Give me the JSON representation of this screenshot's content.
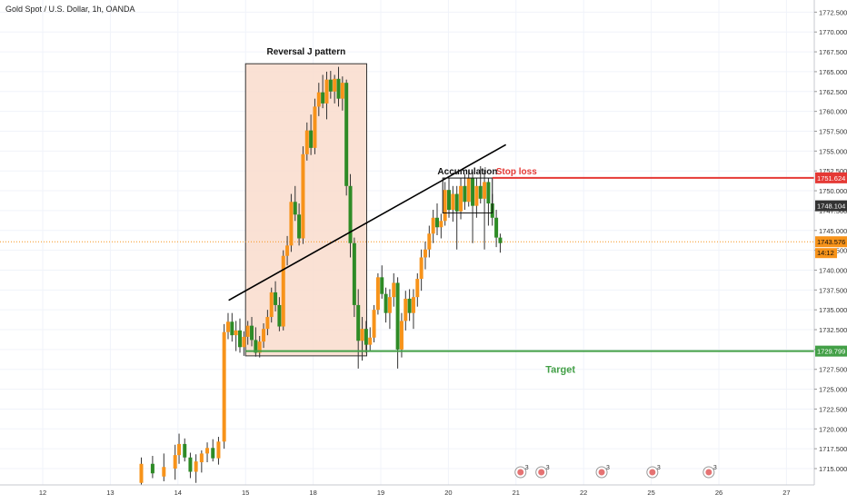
{
  "header": {
    "symbol_title": "Gold Spot / U.S. Dollar, 1h, OANDA"
  },
  "colors": {
    "up": "#f7931a",
    "down": "#2e8b26",
    "wick": "#333333",
    "stop": "#e53935",
    "target": "#43a047",
    "current_price_line": "#f7931a",
    "reversal_box_fill": "#f9dccd",
    "grid": "#f0f3fa"
  },
  "chart_data": {
    "type": "candlestick",
    "title": "Gold Spot / U.S. Dollar, 1h, OANDA",
    "ylim": [
      1713,
      1774
    ],
    "y_ticks": [
      "1715.000",
      "1717.500",
      "1720.000",
      "1722.500",
      "1725.000",
      "1727.500",
      "1730.000",
      "1732.500",
      "1735.000",
      "1737.500",
      "1740.000",
      "1742.500",
      "1745.000",
      "1747.500",
      "1750.000",
      "1752.500",
      "1755.000",
      "1757.500",
      "1760.000",
      "1762.500",
      "1765.000",
      "1767.500",
      "1770.000",
      "1772.500"
    ],
    "y_tick_values": [
      1715,
      1717.5,
      1720,
      1722.5,
      1725,
      1727.5,
      1730,
      1732.5,
      1735,
      1737.5,
      1740,
      1742.5,
      1745,
      1747.5,
      1750,
      1752.5,
      1755,
      1757.5,
      1760,
      1762.5,
      1765,
      1767.5,
      1770,
      1772.5
    ],
    "x_ticks": [
      "12",
      "13",
      "14",
      "15",
      "18",
      "19",
      "20",
      "21",
      "22",
      "25",
      "26",
      "27"
    ],
    "x_tick_positions": [
      0,
      12,
      24,
      36,
      48,
      60,
      72,
      84,
      96,
      108,
      120,
      132
    ],
    "candles": [
      {
        "x": 17.5,
        "o": 1713.2,
        "h": 1716.4,
        "l": 1713.0,
        "c": 1715.6
      },
      {
        "x": 19.5,
        "o": 1715.6,
        "h": 1716.6,
        "l": 1713.8,
        "c": 1714.4
      },
      {
        "x": 21.5,
        "o": 1714.0,
        "h": 1716.9,
        "l": 1713.4,
        "c": 1715.2
      },
      {
        "x": 23.5,
        "o": 1715.0,
        "h": 1718.0,
        "l": 1713.6,
        "c": 1716.7
      },
      {
        "x": 24.2,
        "o": 1716.7,
        "h": 1719.4,
        "l": 1715.6,
        "c": 1718.1
      },
      {
        "x": 25.2,
        "o": 1718.1,
        "h": 1718.8,
        "l": 1715.9,
        "c": 1716.4
      },
      {
        "x": 26.2,
        "o": 1716.4,
        "h": 1717.0,
        "l": 1713.8,
        "c": 1714.6
      },
      {
        "x": 27.2,
        "o": 1714.6,
        "h": 1716.8,
        "l": 1713.2,
        "c": 1715.9
      },
      {
        "x": 28.2,
        "o": 1715.8,
        "h": 1717.3,
        "l": 1714.5,
        "c": 1716.9
      },
      {
        "x": 29.2,
        "o": 1716.9,
        "h": 1718.3,
        "l": 1715.8,
        "c": 1717.6
      },
      {
        "x": 30.2,
        "o": 1717.6,
        "h": 1718.7,
        "l": 1715.9,
        "c": 1716.3
      },
      {
        "x": 31.2,
        "o": 1716.3,
        "h": 1719.0,
        "l": 1715.5,
        "c": 1718.4
      },
      {
        "x": 32.2,
        "o": 1718.4,
        "h": 1733.2,
        "l": 1717.5,
        "c": 1732.2
      },
      {
        "x": 32.9,
        "o": 1732.2,
        "h": 1734.6,
        "l": 1731.3,
        "c": 1733.5
      },
      {
        "x": 33.6,
        "o": 1733.5,
        "h": 1734.6,
        "l": 1731.0,
        "c": 1731.8
      },
      {
        "x": 34.3,
        "o": 1731.8,
        "h": 1733.6,
        "l": 1729.8,
        "c": 1732.4
      },
      {
        "x": 35.0,
        "o": 1732.4,
        "h": 1733.9,
        "l": 1729.6,
        "c": 1730.3
      },
      {
        "x": 35.7,
        "o": 1730.3,
        "h": 1732.3,
        "l": 1729.2,
        "c": 1731.6
      },
      {
        "x": 36.4,
        "o": 1731.6,
        "h": 1733.6,
        "l": 1730.6,
        "c": 1733.0
      },
      {
        "x": 37.1,
        "o": 1733.0,
        "h": 1734.1,
        "l": 1730.4,
        "c": 1731.2
      },
      {
        "x": 37.8,
        "o": 1731.2,
        "h": 1732.8,
        "l": 1729.1,
        "c": 1729.6
      },
      {
        "x": 38.5,
        "o": 1729.6,
        "h": 1731.7,
        "l": 1729.0,
        "c": 1731.0
      },
      {
        "x": 39.2,
        "o": 1731.0,
        "h": 1733.3,
        "l": 1730.2,
        "c": 1732.6
      },
      {
        "x": 39.9,
        "o": 1732.6,
        "h": 1735.0,
        "l": 1731.8,
        "c": 1734.1
      },
      {
        "x": 40.6,
        "o": 1734.1,
        "h": 1737.8,
        "l": 1733.4,
        "c": 1737.2
      },
      {
        "x": 41.3,
        "o": 1737.2,
        "h": 1738.6,
        "l": 1734.8,
        "c": 1735.6
      },
      {
        "x": 42.0,
        "o": 1735.6,
        "h": 1736.6,
        "l": 1732.3,
        "c": 1732.9
      },
      {
        "x": 42.7,
        "o": 1732.9,
        "h": 1742.5,
        "l": 1732.4,
        "c": 1741.8
      },
      {
        "x": 43.4,
        "o": 1741.8,
        "h": 1744.3,
        "l": 1740.6,
        "c": 1743.1
      },
      {
        "x": 44.1,
        "o": 1743.1,
        "h": 1749.6,
        "l": 1742.3,
        "c": 1748.6
      },
      {
        "x": 44.8,
        "o": 1748.6,
        "h": 1750.6,
        "l": 1746.2,
        "c": 1747.0
      },
      {
        "x": 45.5,
        "o": 1747.0,
        "h": 1748.4,
        "l": 1743.1,
        "c": 1744.0
      },
      {
        "x": 46.2,
        "o": 1744.0,
        "h": 1755.6,
        "l": 1743.3,
        "c": 1754.6
      },
      {
        "x": 46.9,
        "o": 1754.6,
        "h": 1758.6,
        "l": 1753.8,
        "c": 1757.6
      },
      {
        "x": 47.6,
        "o": 1757.6,
        "h": 1759.6,
        "l": 1754.5,
        "c": 1755.4
      },
      {
        "x": 48.3,
        "o": 1755.4,
        "h": 1761.6,
        "l": 1754.6,
        "c": 1760.6
      },
      {
        "x": 49.0,
        "o": 1760.6,
        "h": 1763.6,
        "l": 1759.4,
        "c": 1762.4
      },
      {
        "x": 49.7,
        "o": 1762.4,
        "h": 1764.6,
        "l": 1760.4,
        "c": 1761.0
      },
      {
        "x": 50.4,
        "o": 1761.0,
        "h": 1765.0,
        "l": 1759.0,
        "c": 1764.0
      },
      {
        "x": 51.1,
        "o": 1764.0,
        "h": 1765.1,
        "l": 1761.6,
        "c": 1762.5
      },
      {
        "x": 51.8,
        "o": 1762.5,
        "h": 1764.6,
        "l": 1761.0,
        "c": 1764.1
      },
      {
        "x": 52.5,
        "o": 1764.1,
        "h": 1765.6,
        "l": 1760.6,
        "c": 1761.6
      },
      {
        "x": 53.2,
        "o": 1761.6,
        "h": 1764.4,
        "l": 1760.1,
        "c": 1763.6
      },
      {
        "x": 53.9,
        "o": 1763.6,
        "h": 1764.0,
        "l": 1749.4,
        "c": 1750.6
      },
      {
        "x": 54.6,
        "o": 1750.6,
        "h": 1752.1,
        "l": 1741.6,
        "c": 1743.4
      },
      {
        "x": 55.3,
        "o": 1743.4,
        "h": 1744.1,
        "l": 1734.1,
        "c": 1735.6
      },
      {
        "x": 56.0,
        "o": 1735.6,
        "h": 1737.6,
        "l": 1727.6,
        "c": 1731.1
      },
      {
        "x": 56.7,
        "o": 1731.1,
        "h": 1734.1,
        "l": 1728.6,
        "c": 1732.6
      },
      {
        "x": 57.4,
        "o": 1732.6,
        "h": 1733.6,
        "l": 1729.6,
        "c": 1730.6
      },
      {
        "x": 58.1,
        "o": 1730.6,
        "h": 1732.8,
        "l": 1729.8,
        "c": 1731.5
      },
      {
        "x": 58.8,
        "o": 1731.5,
        "h": 1735.6,
        "l": 1730.9,
        "c": 1735.0
      },
      {
        "x": 59.5,
        "o": 1735.0,
        "h": 1739.6,
        "l": 1734.4,
        "c": 1739.1
      },
      {
        "x": 60.2,
        "o": 1739.1,
        "h": 1740.6,
        "l": 1736.4,
        "c": 1737.0
      },
      {
        "x": 60.9,
        "o": 1737.0,
        "h": 1737.8,
        "l": 1733.4,
        "c": 1734.6
      },
      {
        "x": 61.6,
        "o": 1734.6,
        "h": 1737.6,
        "l": 1732.6,
        "c": 1736.6
      },
      {
        "x": 62.3,
        "o": 1736.6,
        "h": 1739.6,
        "l": 1735.4,
        "c": 1738.4
      },
      {
        "x": 63.0,
        "o": 1738.4,
        "h": 1739.1,
        "l": 1727.6,
        "c": 1730.0
      },
      {
        "x": 63.7,
        "o": 1730.0,
        "h": 1734.6,
        "l": 1729.0,
        "c": 1733.6
      },
      {
        "x": 64.4,
        "o": 1733.6,
        "h": 1737.4,
        "l": 1732.4,
        "c": 1736.4
      },
      {
        "x": 65.1,
        "o": 1736.4,
        "h": 1737.6,
        "l": 1733.6,
        "c": 1734.6
      },
      {
        "x": 65.8,
        "o": 1734.6,
        "h": 1737.6,
        "l": 1732.6,
        "c": 1736.6
      },
      {
        "x": 66.5,
        "o": 1736.6,
        "h": 1739.6,
        "l": 1735.4,
        "c": 1738.9
      },
      {
        "x": 67.2,
        "o": 1738.9,
        "h": 1742.6,
        "l": 1737.4,
        "c": 1741.6
      },
      {
        "x": 67.9,
        "o": 1741.6,
        "h": 1743.6,
        "l": 1740.1,
        "c": 1742.6
      },
      {
        "x": 68.6,
        "o": 1742.6,
        "h": 1745.6,
        "l": 1741.6,
        "c": 1744.6
      },
      {
        "x": 69.3,
        "o": 1744.6,
        "h": 1747.6,
        "l": 1743.4,
        "c": 1746.6
      },
      {
        "x": 70.0,
        "o": 1746.6,
        "h": 1748.4,
        "l": 1744.4,
        "c": 1745.4
      },
      {
        "x": 70.7,
        "o": 1745.4,
        "h": 1747.1,
        "l": 1744.0,
        "c": 1746.2
      },
      {
        "x": 71.4,
        "o": 1746.2,
        "h": 1751.1,
        "l": 1745.6,
        "c": 1750.1
      },
      {
        "x": 72.1,
        "o": 1750.1,
        "h": 1751.6,
        "l": 1746.6,
        "c": 1747.6
      },
      {
        "x": 72.8,
        "o": 1747.6,
        "h": 1750.6,
        "l": 1746.1,
        "c": 1749.6
      },
      {
        "x": 73.5,
        "o": 1749.6,
        "h": 1750.6,
        "l": 1742.6,
        "c": 1747.4
      },
      {
        "x": 74.2,
        "o": 1747.4,
        "h": 1751.6,
        "l": 1746.4,
        "c": 1750.6
      },
      {
        "x": 74.9,
        "o": 1750.6,
        "h": 1752.1,
        "l": 1747.6,
        "c": 1748.6
      },
      {
        "x": 75.6,
        "o": 1748.6,
        "h": 1752.6,
        "l": 1748.0,
        "c": 1751.6
      },
      {
        "x": 76.3,
        "o": 1751.6,
        "h": 1752.4,
        "l": 1743.4,
        "c": 1748.1
      },
      {
        "x": 77.0,
        "o": 1748.1,
        "h": 1751.6,
        "l": 1746.6,
        "c": 1750.6
      },
      {
        "x": 77.7,
        "o": 1750.6,
        "h": 1753.1,
        "l": 1748.4,
        "c": 1749.0
      },
      {
        "x": 78.4,
        "o": 1749.0,
        "h": 1752.6,
        "l": 1742.6,
        "c": 1751.1
      },
      {
        "x": 79.1,
        "o": 1751.1,
        "h": 1751.6,
        "l": 1745.6,
        "c": 1748.4
      },
      {
        "x": 79.8,
        "o": 1748.4,
        "h": 1749.6,
        "l": 1745.6,
        "c": 1746.6
      },
      {
        "x": 80.5,
        "o": 1746.6,
        "h": 1747.6,
        "l": 1742.9,
        "c": 1744.1
      },
      {
        "x": 81.2,
        "o": 1744.1,
        "h": 1744.6,
        "l": 1742.2,
        "c": 1743.4
      }
    ],
    "annotations": {
      "reversal_box_label": "Reversal J pattern",
      "reversal_box": {
        "x0": 36.0,
        "x1": 57.5,
        "y0": 1729.2,
        "y1": 1766.0
      },
      "accumulation_label": "Accumulation",
      "accumulation_box": {
        "x0": 71.0,
        "x1": 79.8,
        "y0": 1747.2,
        "y1": 1751.6
      },
      "trendline": {
        "x0": 33.0,
        "y0": 1736.2,
        "x1": 82.2,
        "y1": 1755.8
      },
      "stop_loss_label": "Stop loss",
      "stop_loss_price": 1751.624,
      "stop_loss_x0": 79.8,
      "target_label": "Target",
      "target_price": 1729.799,
      "target_x0": 36.0,
      "current_price": 1743.576
    },
    "price_labels": {
      "stop_loss": "1751.624",
      "dark": "1748.104",
      "current": "1743.576",
      "countdown": "14:12",
      "target": "1729.799"
    },
    "event_markers": [
      {
        "x": 84.8,
        "text": "3"
      },
      {
        "x": 88.5,
        "text": "3"
      },
      {
        "x": 99.2,
        "text": "3"
      },
      {
        "x": 108.2,
        "text": "3"
      },
      {
        "x": 118.2,
        "text": "3"
      }
    ]
  }
}
